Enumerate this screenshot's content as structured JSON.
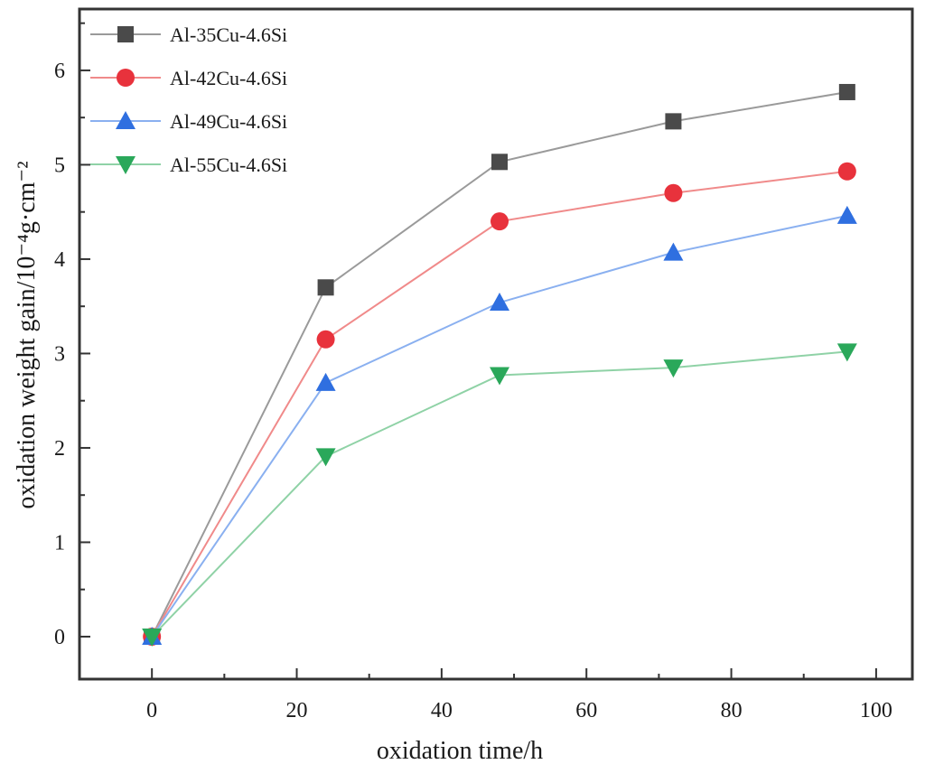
{
  "chart_data": {
    "type": "line",
    "title": "",
    "xlabel": "oxidation time/h",
    "ylabel": "oxidation weight gain/10⁻⁴g·cm⁻²",
    "xlim": [
      -10,
      105
    ],
    "ylim": [
      -0.45,
      6.65
    ],
    "xticks": [
      0,
      20,
      40,
      60,
      80,
      100
    ],
    "yticks": [
      0,
      1,
      2,
      3,
      4,
      5,
      6
    ],
    "grid": false,
    "legend_position": "top-left",
    "x": [
      0,
      24,
      48,
      72,
      96
    ],
    "series": [
      {
        "name": "Al-35Cu-4.6Si",
        "color": "#4a4a4a",
        "line_color": "#9a9a9a",
        "marker": "square",
        "values": [
          0,
          3.7,
          5.03,
          5.46,
          5.77
        ]
      },
      {
        "name": "Al-42Cu-4.6Si",
        "color": "#e8323c",
        "line_color": "#f08a8a",
        "marker": "circle",
        "values": [
          0,
          3.15,
          4.4,
          4.7,
          4.93
        ]
      },
      {
        "name": "Al-49Cu-4.6Si",
        "color": "#2f6fe0",
        "line_color": "#8ab0f0",
        "marker": "triangle-up",
        "values": [
          0,
          2.69,
          3.54,
          4.07,
          4.46
        ]
      },
      {
        "name": "Al-55Cu-4.6Si",
        "color": "#2aa85a",
        "line_color": "#8fd2a6",
        "marker": "triangle-down",
        "values": [
          0,
          1.91,
          2.77,
          2.85,
          3.02
        ]
      }
    ]
  }
}
